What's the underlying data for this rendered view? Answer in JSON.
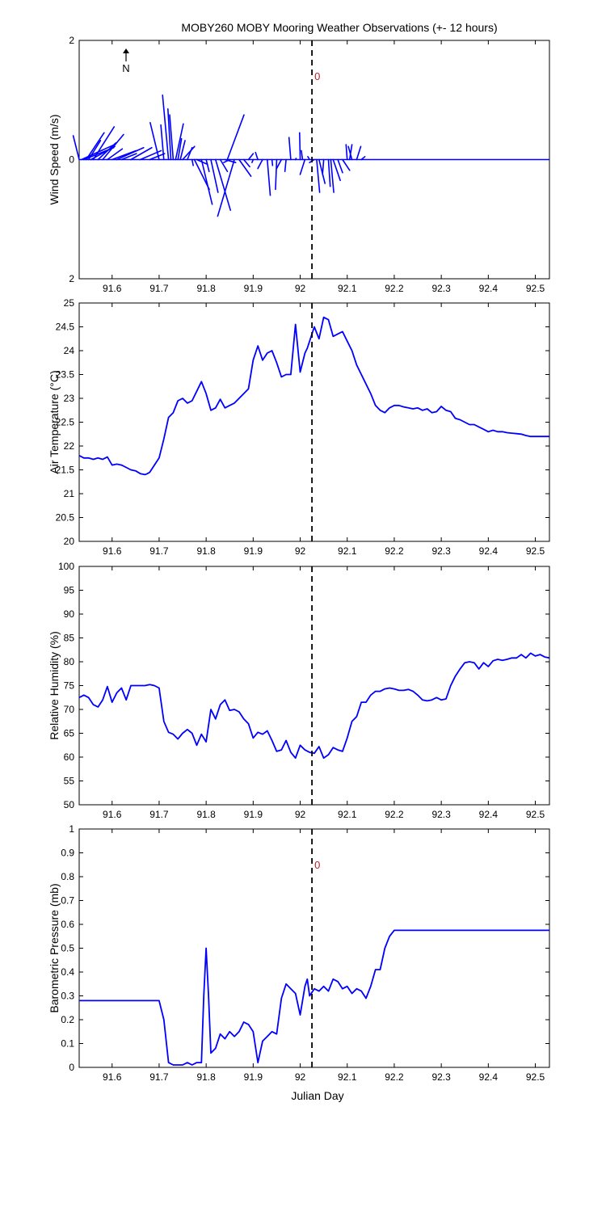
{
  "figure": {
    "title": "MOBY260 MOBY Mooring Weather Observations (+- 12 hours)",
    "xlabel": "Julian Day",
    "north_label": "N"
  },
  "chart_data": [
    {
      "type": "line",
      "subtype": "wind-stick",
      "ylabel": "Wind Speed (m/s)",
      "xlim": [
        91.53,
        92.53
      ],
      "ylim": [
        -2,
        2
      ],
      "yticks": [
        2,
        0,
        2
      ],
      "xticks": [
        91.6,
        91.7,
        91.8,
        91.9,
        92,
        92.1,
        92.2,
        92.3,
        92.4,
        92.5
      ],
      "marker_x": 92.025,
      "marker_label": "0",
      "zero_line_x_range": [
        91.53,
        92.53
      ],
      "sticks": [
        [
          91.53,
          -0.1,
          0.4
        ],
        [
          91.535,
          0.55,
          0.25
        ],
        [
          91.54,
          0.5,
          0.2
        ],
        [
          91.545,
          0.3,
          0.45
        ],
        [
          91.55,
          0.2,
          0.32
        ],
        [
          91.555,
          0.4,
          0.22
        ],
        [
          91.56,
          0.35,
          0.55
        ],
        [
          91.57,
          0.3,
          0.28
        ],
        [
          91.58,
          0.35,
          0.42
        ],
        [
          91.59,
          0.25,
          0.18
        ],
        [
          91.6,
          0.4,
          0.15
        ],
        [
          91.61,
          0.45,
          0.2
        ],
        [
          91.62,
          0.25,
          0.1
        ],
        [
          91.64,
          0.35,
          0.2
        ],
        [
          91.66,
          0.35,
          0.15
        ],
        [
          91.68,
          0.25,
          0.1
        ],
        [
          91.7,
          -0.15,
          0.62
        ],
        [
          91.71,
          -0.05,
          0.58
        ],
        [
          91.72,
          -0.1,
          1.08
        ],
        [
          91.725,
          -0.05,
          0.85
        ],
        [
          91.73,
          -0.06,
          0.75
        ],
        [
          91.735,
          0.13,
          0.6
        ],
        [
          91.74,
          0.06,
          0.35
        ],
        [
          91.745,
          0.08,
          0.32
        ],
        [
          91.75,
          0.2,
          0.22
        ],
        [
          91.76,
          0.08,
          0.2
        ],
        [
          91.77,
          0.02,
          -0.1
        ],
        [
          91.775,
          0.25,
          -0.5
        ],
        [
          91.78,
          0.18,
          -0.08
        ],
        [
          91.79,
          0.18,
          -0.75
        ],
        [
          91.8,
          0.05,
          -0.2
        ],
        [
          91.81,
          0.12,
          -0.55
        ],
        [
          91.82,
          0.25,
          -0.85
        ],
        [
          91.83,
          0.12,
          -0.2
        ],
        [
          91.84,
          0.18,
          -0.05
        ],
        [
          91.845,
          0.28,
          0.75
        ],
        [
          91.85,
          -0.1,
          -0.05
        ],
        [
          91.86,
          -0.28,
          -0.95
        ],
        [
          91.87,
          0.2,
          -0.28
        ],
        [
          91.88,
          0.1,
          -0.12
        ],
        [
          91.89,
          0.08,
          0.1
        ],
        [
          91.9,
          -0.02,
          -0.05
        ],
        [
          91.91,
          -0.04,
          0.12
        ],
        [
          91.92,
          -0.08,
          -0.15
        ],
        [
          91.93,
          0.05,
          -0.6
        ],
        [
          91.94,
          0.01,
          -0.1
        ],
        [
          91.95,
          -0.02,
          -0.5
        ],
        [
          91.96,
          -0.08,
          -0.15
        ],
        [
          91.97,
          -0.02,
          -0.2
        ],
        [
          91.98,
          -0.03,
          0.37
        ],
        [
          91.99,
          0.01,
          0.02
        ],
        [
          92.0,
          -0.01,
          0.45
        ],
        [
          92.005,
          -0.02,
          0.15
        ],
        [
          92.01,
          -0.08,
          -0.25
        ],
        [
          92.02,
          -0.03,
          0.05
        ],
        [
          92.03,
          -0.08,
          -0.05
        ],
        [
          92.035,
          0.05,
          -0.55
        ],
        [
          92.04,
          0.1,
          -0.4
        ],
        [
          92.05,
          -0.02,
          -0.25
        ],
        [
          92.06,
          0.03,
          -0.45
        ],
        [
          92.065,
          0.05,
          -0.55
        ],
        [
          92.07,
          0.12,
          -0.35
        ],
        [
          92.08,
          0.08,
          -0.22
        ],
        [
          92.09,
          0.12,
          -0.18
        ],
        [
          92.1,
          -0.02,
          0.25
        ],
        [
          92.105,
          0.04,
          0.25
        ],
        [
          92.11,
          -0.06,
          0.22
        ],
        [
          92.12,
          0.07,
          0.22
        ],
        [
          92.13,
          0.06,
          0.05
        ]
      ]
    },
    {
      "type": "line",
      "ylabel": "Air Temperature (°C)",
      "xlim": [
        91.53,
        92.53
      ],
      "ylim": [
        20,
        25
      ],
      "yticks": [
        20,
        20.5,
        21,
        21.5,
        22,
        22.5,
        23,
        23.5,
        24,
        24.5,
        25
      ],
      "ytick_labels": [
        "20",
        "20.5",
        "21",
        "21.5",
        "22",
        "22.5",
        "23",
        "23.5",
        "24",
        "24.5",
        "25"
      ],
      "xticks": [
        91.6,
        91.7,
        91.8,
        91.9,
        92,
        92.1,
        92.2,
        92.3,
        92.4,
        92.5
      ],
      "marker_x": 92.025,
      "series": [
        {
          "color": "#0000ff",
          "x": [
            91.53,
            91.54,
            91.55,
            91.56,
            91.57,
            91.58,
            91.59,
            91.6,
            91.61,
            91.62,
            91.63,
            91.64,
            91.65,
            91.66,
            91.67,
            91.675,
            91.68,
            91.69,
            91.7,
            91.71,
            91.72,
            91.73,
            91.74,
            91.75,
            91.76,
            91.77,
            91.78,
            91.79,
            91.8,
            91.81,
            91.82,
            91.83,
            91.84,
            91.85,
            91.86,
            91.87,
            91.88,
            91.89,
            91.9,
            91.91,
            91.92,
            91.93,
            91.94,
            91.95,
            91.96,
            91.97,
            91.98,
            91.99,
            92.0,
            92.01,
            92.015,
            92.02,
            92.03,
            92.04,
            92.05,
            92.06,
            92.07,
            92.08,
            92.09,
            92.1,
            92.11,
            92.12,
            92.13,
            92.14,
            92.15,
            92.16,
            92.17,
            92.18,
            92.19,
            92.2,
            92.21,
            92.22,
            92.23,
            92.24,
            92.25,
            92.26,
            92.27,
            92.28,
            92.29,
            92.3,
            92.31,
            92.32,
            92.33,
            92.34,
            92.35,
            92.36,
            92.37,
            92.38,
            92.39,
            92.4,
            92.41,
            92.42,
            92.43,
            92.44,
            92.45,
            92.46,
            92.47,
            92.48,
            92.49,
            92.5,
            92.51,
            92.52,
            92.53
          ],
          "y": [
            21.8,
            21.75,
            21.75,
            21.72,
            21.75,
            21.72,
            21.77,
            21.6,
            21.62,
            21.6,
            21.55,
            21.5,
            21.48,
            21.42,
            21.4,
            21.42,
            21.45,
            21.6,
            21.75,
            22.15,
            22.6,
            22.7,
            22.95,
            23.0,
            22.9,
            22.95,
            23.15,
            23.35,
            23.1,
            22.75,
            22.8,
            22.98,
            22.8,
            22.85,
            22.9,
            23.0,
            23.1,
            23.2,
            23.8,
            24.1,
            23.8,
            23.95,
            24.0,
            23.75,
            23.45,
            23.5,
            23.5,
            24.55,
            23.55,
            23.95,
            24.05,
            24.2,
            24.5,
            24.25,
            24.7,
            24.65,
            24.3,
            24.35,
            24.4,
            24.2,
            24.0,
            23.7,
            23.5,
            23.3,
            23.1,
            22.85,
            22.75,
            22.7,
            22.8,
            22.85,
            22.85,
            22.82,
            22.8,
            22.78,
            22.8,
            22.75,
            22.78,
            22.7,
            22.72,
            22.83,
            22.75,
            22.72,
            22.58,
            22.55,
            22.5,
            22.45,
            22.45,
            22.4,
            22.35,
            22.3,
            22.33,
            22.3,
            22.3,
            22.28,
            22.27,
            22.26,
            22.25,
            22.22,
            22.2,
            22.2,
            22.2,
            22.2,
            22.2
          ]
        }
      ]
    },
    {
      "type": "line",
      "ylabel": "Relative Humidity (%)",
      "xlim": [
        91.53,
        92.53
      ],
      "ylim": [
        50,
        100
      ],
      "yticks": [
        50,
        55,
        60,
        65,
        70,
        75,
        80,
        85,
        90,
        95,
        100
      ],
      "xticks": [
        91.6,
        91.7,
        91.8,
        91.9,
        92,
        92.1,
        92.2,
        92.3,
        92.4,
        92.5
      ],
      "marker_x": 92.025,
      "series": [
        {
          "color": "#0000ff",
          "x": [
            91.53,
            91.54,
            91.55,
            91.56,
            91.57,
            91.58,
            91.59,
            91.6,
            91.61,
            91.62,
            91.63,
            91.64,
            91.65,
            91.66,
            91.67,
            91.68,
            91.69,
            91.7,
            91.71,
            91.72,
            91.73,
            91.74,
            91.75,
            91.76,
            91.77,
            91.78,
            91.79,
            91.8,
            91.81,
            91.82,
            91.83,
            91.84,
            91.85,
            91.86,
            91.87,
            91.88,
            91.89,
            91.9,
            91.91,
            91.92,
            91.93,
            91.94,
            91.95,
            91.96,
            91.97,
            91.98,
            91.99,
            92.0,
            92.01,
            92.02,
            92.03,
            92.04,
            92.05,
            92.06,
            92.07,
            92.08,
            92.09,
            92.1,
            92.11,
            92.12,
            92.13,
            92.14,
            92.15,
            92.16,
            92.17,
            92.18,
            92.19,
            92.2,
            92.21,
            92.22,
            92.23,
            92.24,
            92.25,
            92.26,
            92.27,
            92.28,
            92.29,
            92.3,
            92.31,
            92.32,
            92.33,
            92.34,
            92.35,
            92.36,
            92.37,
            92.38,
            92.39,
            92.4,
            92.41,
            92.42,
            92.43,
            92.44,
            92.45,
            92.46,
            92.47,
            92.48,
            92.49,
            92.5,
            92.51,
            92.52,
            92.53
          ],
          "y": [
            72.5,
            73.0,
            72.5,
            71.0,
            70.5,
            72.0,
            74.8,
            71.5,
            73.5,
            74.5,
            72.0,
            75.0,
            75.0,
            75.0,
            75.0,
            75.2,
            75.0,
            74.5,
            67.5,
            65.2,
            64.8,
            63.8,
            65.0,
            65.8,
            65.0,
            62.5,
            64.8,
            63.2,
            70.0,
            68.0,
            71.0,
            72.0,
            69.8,
            70.0,
            69.5,
            68.0,
            67.0,
            64.0,
            65.2,
            64.8,
            65.5,
            63.5,
            61.2,
            61.5,
            63.5,
            61.0,
            59.8,
            62.5,
            61.5,
            61.0,
            60.8,
            62.2,
            59.8,
            60.5,
            62.0,
            61.5,
            61.2,
            64.0,
            67.5,
            68.5,
            71.5,
            71.5,
            73.0,
            73.8,
            73.8,
            74.3,
            74.5,
            74.3,
            74.0,
            74.0,
            74.2,
            73.8,
            73.0,
            72.0,
            71.8,
            72.0,
            72.5,
            72.0,
            72.2,
            75.0,
            77.0,
            78.5,
            79.8,
            80.0,
            79.8,
            78.5,
            79.8,
            79.0,
            80.2,
            80.5,
            80.3,
            80.5,
            80.8,
            80.8,
            81.5,
            80.8,
            81.8,
            81.2,
            81.5,
            81.0,
            80.8
          ]
        }
      ]
    },
    {
      "type": "line",
      "ylabel": "Barometric Pressure (mb)",
      "xlim": [
        91.53,
        92.53
      ],
      "ylim": [
        0,
        1
      ],
      "yticks": [
        0,
        0.1,
        0.2,
        0.3,
        0.4,
        0.5,
        0.6,
        0.7,
        0.8,
        0.9,
        1
      ],
      "xticks": [
        91.6,
        91.7,
        91.8,
        91.9,
        92,
        92.1,
        92.2,
        92.3,
        92.4,
        92.5
      ],
      "marker_x": 92.025,
      "marker_label": "0",
      "series": [
        {
          "color": "#0000ff",
          "x": [
            91.53,
            91.7,
            91.71,
            91.72,
            91.73,
            91.74,
            91.75,
            91.76,
            91.77,
            91.78,
            91.79,
            91.795,
            91.8,
            91.805,
            91.81,
            91.82,
            91.83,
            91.84,
            91.85,
            91.86,
            91.87,
            91.88,
            91.89,
            91.9,
            91.91,
            91.92,
            91.93,
            91.94,
            91.95,
            91.96,
            91.97,
            91.98,
            91.99,
            92.0,
            92.01,
            92.015,
            92.02,
            92.03,
            92.04,
            92.05,
            92.06,
            92.07,
            92.08,
            92.09,
            92.1,
            92.11,
            92.12,
            92.13,
            92.14,
            92.15,
            92.16,
            92.17,
            92.18,
            92.19,
            92.2,
            92.21,
            92.22,
            92.53
          ],
          "y": [
            0.28,
            0.28,
            0.2,
            0.02,
            0.01,
            0.01,
            0.01,
            0.02,
            0.01,
            0.02,
            0.02,
            0.3,
            0.5,
            0.3,
            0.06,
            0.08,
            0.14,
            0.12,
            0.15,
            0.13,
            0.15,
            0.19,
            0.18,
            0.15,
            0.02,
            0.11,
            0.13,
            0.15,
            0.14,
            0.29,
            0.35,
            0.33,
            0.31,
            0.22,
            0.34,
            0.37,
            0.3,
            0.33,
            0.32,
            0.34,
            0.32,
            0.37,
            0.36,
            0.33,
            0.34,
            0.31,
            0.33,
            0.32,
            0.29,
            0.34,
            0.41,
            0.41,
            0.5,
            0.55,
            0.575,
            0.575,
            0.575,
            0.575
          ]
        }
      ]
    }
  ]
}
